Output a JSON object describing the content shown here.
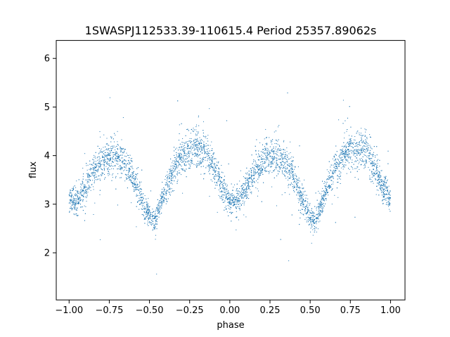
{
  "chart_data": {
    "type": "scatter",
    "title": "1SWASPJ112533.39-110615.4 Period 25357.89062s",
    "xlabel": "phase",
    "ylabel": "flux",
    "xlim": [
      -1.08,
      1.09
    ],
    "ylim": [
      1.03,
      6.37
    ],
    "xticks": [
      -1.0,
      -0.75,
      -0.5,
      -0.25,
      0.0,
      0.25,
      0.5,
      0.75,
      1.0
    ],
    "xtick_labels": [
      "−1.00",
      "−0.75",
      "−0.50",
      "−0.25",
      "0.00",
      "0.25",
      "0.50",
      "0.75",
      "1.00"
    ],
    "yticks": [
      2,
      3,
      4,
      5,
      6
    ],
    "ytick_labels": [
      "2",
      "3",
      "4",
      "5",
      "6"
    ],
    "grid": false,
    "point_color": "#1f77b4",
    "series": [
      {
        "points_description_profile": "phase-folded light curve, two cycles",
        "curve_x": [
          -1.0,
          -0.95,
          -0.9,
          -0.85,
          -0.8,
          -0.75,
          -0.7,
          -0.65,
          -0.6,
          -0.55,
          -0.5,
          -0.47,
          -0.45,
          -0.4,
          -0.35,
          -0.3,
          -0.25,
          -0.2,
          -0.15,
          -0.1,
          -0.05,
          0.0,
          0.05,
          0.1,
          0.15,
          0.2,
          0.25,
          0.3,
          0.35,
          0.4,
          0.45,
          0.5,
          0.53,
          0.55,
          0.6,
          0.65,
          0.7,
          0.75,
          0.8,
          0.85,
          0.9,
          0.95,
          1.0
        ],
        "curve_y": [
          3.1,
          3.05,
          3.3,
          3.65,
          3.85,
          3.97,
          3.98,
          3.85,
          3.55,
          3.1,
          2.75,
          2.65,
          2.8,
          3.3,
          3.7,
          3.95,
          4.12,
          4.18,
          4.05,
          3.75,
          3.35,
          3.1,
          3.05,
          3.3,
          3.65,
          3.85,
          3.97,
          3.98,
          3.85,
          3.55,
          3.1,
          2.75,
          2.65,
          2.8,
          3.3,
          3.7,
          3.95,
          4.12,
          4.18,
          4.05,
          3.75,
          3.35,
          3.1
        ]
      }
    ]
  }
}
